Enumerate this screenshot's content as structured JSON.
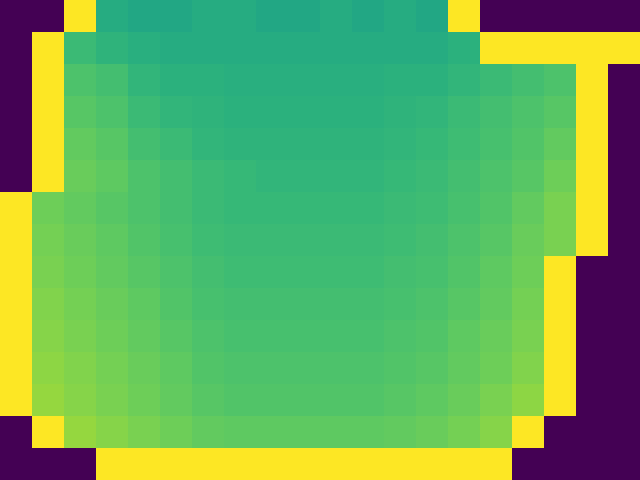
{
  "chart_data": {
    "type": "heatmap",
    "tick_labels": false,
    "color_range": [
      0,
      100
    ],
    "cells": [
      [
        0,
        0,
        100,
        62,
        60,
        60,
        62,
        62,
        60,
        60,
        62,
        60,
        62,
        60,
        100,
        0,
        0,
        0,
        0,
        0
      ],
      [
        0,
        100,
        68,
        65,
        63,
        62,
        62,
        62,
        62,
        62,
        62,
        62,
        62,
        62,
        64,
        100,
        100,
        100,
        100,
        100
      ],
      [
        0,
        100,
        72,
        70,
        66,
        64,
        64,
        63,
        63,
        63,
        63,
        63,
        64,
        64,
        66,
        68,
        70,
        72,
        100,
        0
      ],
      [
        0,
        100,
        74,
        72,
        68,
        66,
        65,
        64,
        64,
        64,
        64,
        64,
        65,
        66,
        68,
        70,
        72,
        74,
        100,
        0
      ],
      [
        0,
        100,
        76,
        74,
        70,
        68,
        66,
        65,
        65,
        65,
        65,
        65,
        66,
        67,
        69,
        71,
        73,
        76,
        100,
        0
      ],
      [
        0,
        100,
        77,
        75,
        72,
        70,
        68,
        67,
        66,
        66,
        66,
        66,
        67,
        68,
        70,
        72,
        74,
        78,
        100,
        0
      ],
      [
        100,
        78,
        76,
        74,
        72,
        70,
        68,
        67,
        67,
        67,
        67,
        67,
        68,
        69,
        71,
        73,
        76,
        80,
        100,
        0
      ],
      [
        100,
        79,
        77,
        75,
        73,
        71,
        69,
        68,
        68,
        68,
        68,
        68,
        69,
        70,
        72,
        74,
        77,
        80,
        100,
        0
      ],
      [
        100,
        80,
        78,
        76,
        74,
        72,
        70,
        69,
        69,
        69,
        69,
        69,
        70,
        71,
        73,
        75,
        78,
        100,
        0,
        0
      ],
      [
        100,
        81,
        79,
        77,
        75,
        73,
        71,
        70,
        70,
        70,
        70,
        70,
        71,
        72,
        74,
        76,
        79,
        100,
        0,
        0
      ],
      [
        100,
        82,
        80,
        78,
        76,
        74,
        72,
        71,
        71,
        71,
        71,
        71,
        72,
        73,
        75,
        77,
        80,
        100,
        0,
        0
      ],
      [
        100,
        83,
        81,
        79,
        77,
        75,
        73,
        72,
        72,
        72,
        72,
        72,
        73,
        74,
        76,
        78,
        81,
        100,
        0,
        0
      ],
      [
        100,
        84,
        82,
        80,
        78,
        76,
        74,
        73,
        73,
        73,
        73,
        73,
        74,
        75,
        77,
        80,
        83,
        100,
        0,
        0
      ],
      [
        0,
        100,
        84,
        82,
        80,
        78,
        76,
        75,
        75,
        75,
        75,
        75,
        76,
        77,
        79,
        82,
        100,
        0,
        0,
        0
      ],
      [
        0,
        0,
        0,
        100,
        100,
        100,
        100,
        100,
        100,
        100,
        100,
        100,
        100,
        100,
        100,
        100,
        0,
        0,
        0,
        0
      ]
    ]
  }
}
